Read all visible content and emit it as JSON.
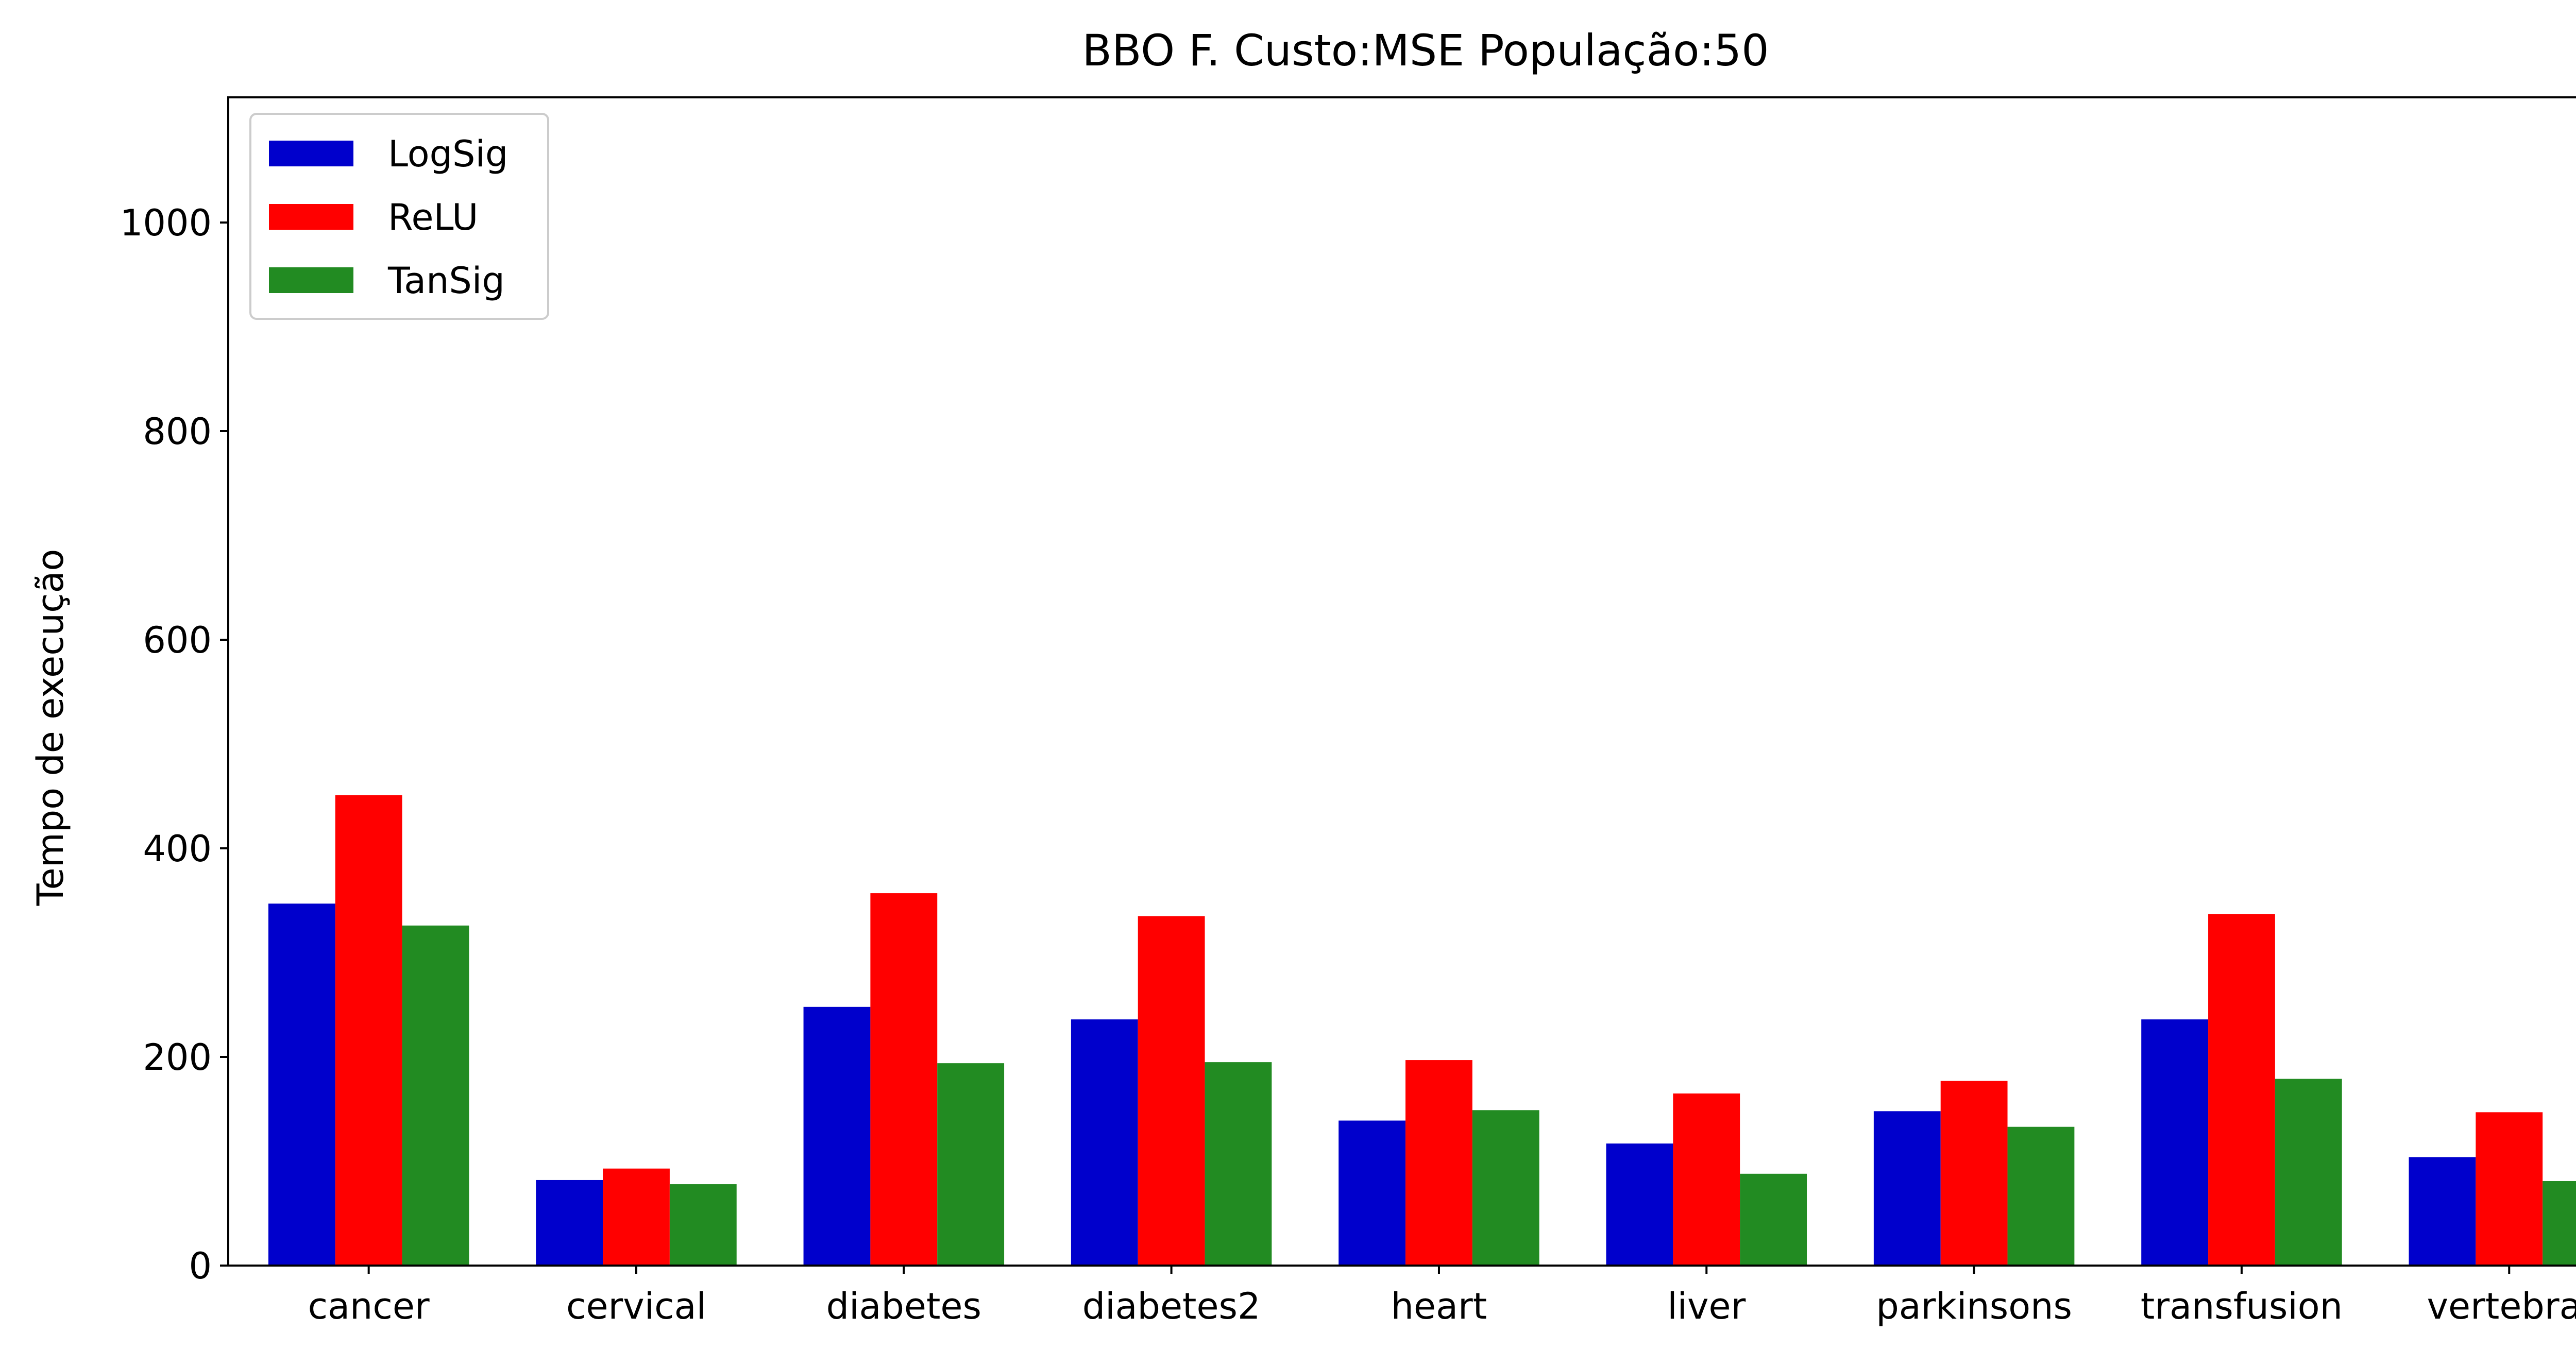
{
  "chart_data": {
    "type": "bar",
    "title": "BBO F. Custo:MSE População:50",
    "xlabel": "",
    "ylabel": "Tempo de execução",
    "ylim": [
      0,
      1120
    ],
    "yticks": [
      0,
      200,
      400,
      600,
      800,
      1000
    ],
    "grid": false,
    "legend_position": "top-left",
    "categories": [
      "cancer",
      "cervical",
      "diabetes",
      "diabetes2",
      "heart",
      "liver",
      "parkinsons",
      "transfusion",
      "vertebral"
    ],
    "series": [
      {
        "name": "LogSig",
        "color": "#0000cc",
        "values": [
          347,
          82,
          248,
          236,
          139,
          117,
          148,
          236,
          104
        ]
      },
      {
        "name": "ReLU",
        "color": "#ff0000",
        "values": [
          451,
          93,
          357,
          335,
          197,
          165,
          177,
          337,
          147
        ]
      },
      {
        "name": "TanSig",
        "color": "#228b22",
        "values": [
          326,
          78,
          194,
          195,
          149,
          88,
          133,
          179,
          81
        ]
      }
    ]
  }
}
